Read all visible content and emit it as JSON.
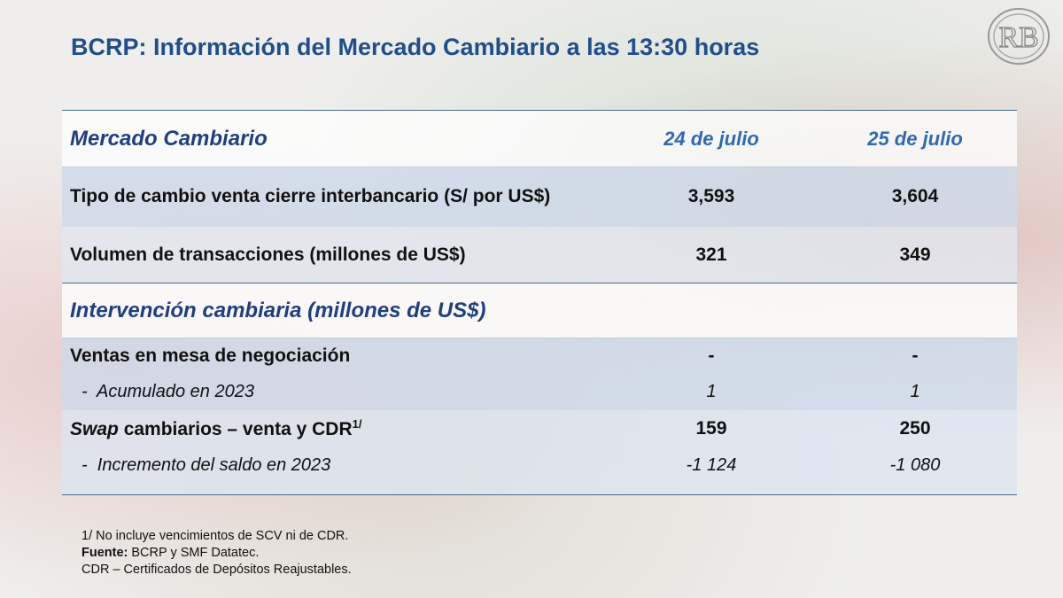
{
  "title": "BCRP: Información del Mercado Cambiario a las 13:30 horas",
  "logo_text": "BCR",
  "header": {
    "label": "Mercado Cambiario",
    "col1": "24 de julio",
    "col2": "25 de julio"
  },
  "rows": [
    {
      "label": "Tipo de cambio venta cierre interbancario (S/ por US$)",
      "v1": "3,593",
      "v2": "3,604"
    },
    {
      "label": "Volumen de transacciones (millones de US$)",
      "v1": "321",
      "v2": "349"
    }
  ],
  "section2": {
    "label": "Intervención cambiaria (millones de US$)"
  },
  "rows2": [
    {
      "label": "Ventas en mesa de negociación",
      "v1": "-",
      "v2": "-"
    },
    {
      "label": "-  Acumulado en 2023",
      "v1": "1",
      "v2": "1"
    },
    {
      "label_italic": "Swap",
      "label": " cambiarios – venta y CDR",
      "sup": "1/",
      "v1": "159",
      "v2": "250"
    },
    {
      "label": "-  Incremento del saldo en 2023",
      "v1": "-1 124",
      "v2": "-1 080"
    }
  ],
  "notes": {
    "n1": "1/ No incluye vencimientos de SCV ni de CDR.",
    "source_label": "Fuente:",
    "source": " BCRP y SMF Datatec.",
    "n3": "CDR – Certificados de Depósitos Reajustables."
  }
}
